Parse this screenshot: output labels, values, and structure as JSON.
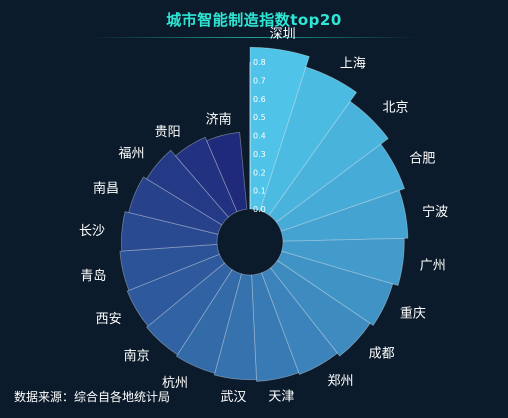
{
  "title": "城市智能制造指数top20",
  "source": "数据来源：综合自各地统计局",
  "chart_data": {
    "type": "polar-bar",
    "title": "城市智能制造指数top20",
    "categories": [
      "深圳",
      "上海",
      "北京",
      "合肥",
      "宁波",
      "广州",
      "重庆",
      "成都",
      "郑州",
      "天津",
      "武汉",
      "杭州",
      "南京",
      "西安",
      "青岛",
      "长沙",
      "南昌",
      "福州",
      "贵阳",
      "济南"
    ],
    "values": [
      0.88,
      0.82,
      0.76,
      0.71,
      0.68,
      0.66,
      0.63,
      0.61,
      0.59,
      0.58,
      0.57,
      0.56,
      0.55,
      0.54,
      0.53,
      0.52,
      0.5,
      0.48,
      0.44,
      0.42
    ],
    "radial_ticks": [
      "0.0",
      "0.1",
      "0.2",
      "0.3",
      "0.4",
      "0.5",
      "0.6",
      "0.7",
      "0.8"
    ],
    "radial_range": [
      0,
      0.8
    ],
    "colors": {
      "start": "#4fc3e8",
      "end": "#1f2a7a",
      "label": "#ffffff",
      "tick": "#ffffff"
    }
  }
}
